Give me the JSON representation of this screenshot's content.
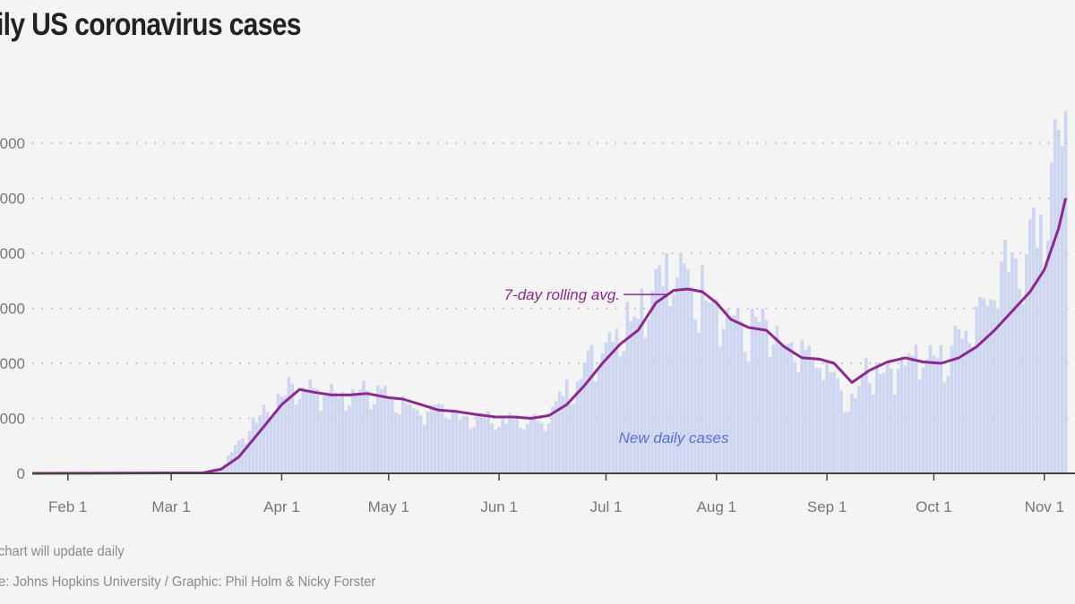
{
  "title": "ily US coronavirus cases",
  "note": "chart will update daily",
  "source": "e: Johns Hopkins University / Graphic: Phil Holm & Nicky Forster",
  "colors": {
    "background": "#f4f4f4",
    "bars": "#cdd5f0",
    "avg_line": "#8b2a8e",
    "bar_label": "#5a72d6",
    "avg_label": "#8b2a8e"
  },
  "chart_data": {
    "type": "bar",
    "title": "ily US coronavirus cases",
    "x_axis": {
      "ticks": [
        "Feb 1",
        "Mar 1",
        "Apr 1",
        "May 1",
        "Jun 1",
        "Jul 1",
        "Aug 1",
        "Sep 1",
        "Oct 1",
        "Nov 1"
      ],
      "range": [
        "2020-01-22",
        "2020-11-07"
      ]
    },
    "y_axis": {
      "ticks": [
        "0",
        "000",
        "000",
        "000",
        "000",
        "000",
        "000"
      ],
      "range": [
        0,
        128000
      ],
      "grid": "dotted"
    },
    "series": [
      {
        "name": "New daily cases",
        "type": "bar",
        "points": [
          [
            "2020-03-01",
            0
          ],
          [
            "2020-03-10",
            500
          ],
          [
            "2020-03-15",
            2500
          ],
          [
            "2020-03-20",
            12000
          ],
          [
            "2020-03-25",
            20000
          ],
          [
            "2020-03-31",
            28000
          ],
          [
            "2020-04-04",
            33000
          ],
          [
            "2020-04-10",
            32000
          ],
          [
            "2020-04-20",
            28000
          ],
          [
            "2020-04-24",
            34000
          ],
          [
            "2020-05-01",
            28000
          ],
          [
            "2020-05-10",
            24000
          ],
          [
            "2020-05-20",
            22000
          ],
          [
            "2020-06-01",
            20000
          ],
          [
            "2020-06-10",
            19500
          ],
          [
            "2020-06-15",
            21000
          ],
          [
            "2020-06-20",
            32000
          ],
          [
            "2020-06-25",
            40000
          ],
          [
            "2020-07-01",
            50000
          ],
          [
            "2020-07-10",
            63000
          ],
          [
            "2020-07-16",
            77000
          ],
          [
            "2020-07-24",
            72000
          ],
          [
            "2020-07-31",
            68000
          ],
          [
            "2020-08-07",
            55000
          ],
          [
            "2020-08-14",
            55000
          ],
          [
            "2020-08-21",
            45000
          ],
          [
            "2020-08-28",
            43000
          ],
          [
            "2020-09-01",
            40000
          ],
          [
            "2020-09-07",
            25000
          ],
          [
            "2020-09-12",
            38000
          ],
          [
            "2020-09-20",
            40000
          ],
          [
            "2020-09-25",
            46000
          ],
          [
            "2020-10-01",
            42000
          ],
          [
            "2020-10-05",
            45000
          ],
          [
            "2020-10-10",
            56000
          ],
          [
            "2020-10-16",
            68000
          ],
          [
            "2020-10-23",
            82000
          ],
          [
            "2020-10-28",
            88000
          ],
          [
            "2020-11-01",
            95000
          ],
          [
            "2020-11-03",
            120000
          ],
          [
            "2020-11-05",
            125000
          ],
          [
            "2020-11-07",
            128000
          ]
        ]
      },
      {
        "name": "7-day rolling avg.",
        "type": "line",
        "points": [
          [
            "2020-01-22",
            0
          ],
          [
            "2020-03-10",
            200
          ],
          [
            "2020-03-15",
            1500
          ],
          [
            "2020-03-20",
            6000
          ],
          [
            "2020-03-27",
            17000
          ],
          [
            "2020-04-01",
            25000
          ],
          [
            "2020-04-06",
            30500
          ],
          [
            "2020-04-10",
            29500
          ],
          [
            "2020-04-15",
            28500
          ],
          [
            "2020-04-20",
            28500
          ],
          [
            "2020-04-25",
            29000
          ],
          [
            "2020-05-01",
            27500
          ],
          [
            "2020-05-05",
            27000
          ],
          [
            "2020-05-10",
            25000
          ],
          [
            "2020-05-15",
            23000
          ],
          [
            "2020-05-20",
            22500
          ],
          [
            "2020-05-25",
            21500
          ],
          [
            "2020-05-31",
            20500
          ],
          [
            "2020-06-05",
            20500
          ],
          [
            "2020-06-10",
            20000
          ],
          [
            "2020-06-15",
            21000
          ],
          [
            "2020-06-20",
            25000
          ],
          [
            "2020-06-25",
            32000
          ],
          [
            "2020-06-30",
            40000
          ],
          [
            "2020-07-05",
            47000
          ],
          [
            "2020-07-10",
            52000
          ],
          [
            "2020-07-15",
            62000
          ],
          [
            "2020-07-20",
            66500
          ],
          [
            "2020-07-24",
            67000
          ],
          [
            "2020-07-28",
            66000
          ],
          [
            "2020-08-01",
            62000
          ],
          [
            "2020-08-05",
            56000
          ],
          [
            "2020-08-10",
            53000
          ],
          [
            "2020-08-15",
            52000
          ],
          [
            "2020-08-20",
            46000
          ],
          [
            "2020-08-25",
            42000
          ],
          [
            "2020-08-30",
            41500
          ],
          [
            "2020-09-03",
            40000
          ],
          [
            "2020-09-08",
            33000
          ],
          [
            "2020-09-13",
            37500
          ],
          [
            "2020-09-18",
            40500
          ],
          [
            "2020-09-23",
            42000
          ],
          [
            "2020-09-28",
            40500
          ],
          [
            "2020-10-03",
            40000
          ],
          [
            "2020-10-08",
            42000
          ],
          [
            "2020-10-13",
            46000
          ],
          [
            "2020-10-18",
            52000
          ],
          [
            "2020-10-23",
            59000
          ],
          [
            "2020-10-28",
            66000
          ],
          [
            "2020-11-01",
            74000
          ],
          [
            "2020-11-05",
            89000
          ],
          [
            "2020-11-07",
            100000
          ]
        ]
      }
    ],
    "annotations": [
      {
        "text": "7-day rolling avg.",
        "target_date": "2020-07-19",
        "target_value": 65000
      },
      {
        "text": "New daily cases",
        "date": "2020-07-20",
        "value": 13000
      }
    ]
  }
}
